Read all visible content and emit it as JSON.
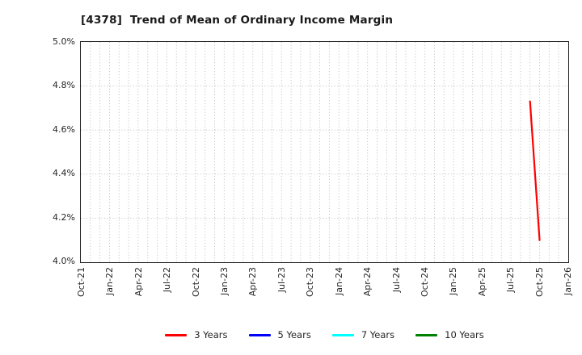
{
  "chart_data": {
    "type": "line",
    "title": "[4378]  Trend of Mean of Ordinary Income Margin",
    "xlabel": "",
    "ylabel": "",
    "ylim": [
      4.0,
      5.0
    ],
    "y_ticks": [
      4.0,
      4.2,
      4.4,
      4.6,
      4.8,
      5.0
    ],
    "y_tick_labels": [
      "4.0%",
      "4.2%",
      "4.4%",
      "4.6%",
      "4.8%",
      "5.0%"
    ],
    "x_start_month": "Oct-21",
    "x_end_month": "Jan-26",
    "months_total": 51,
    "x_tick_step_months": 3,
    "x_tick_labels": [
      "Oct-21",
      "Jan-22",
      "Apr-22",
      "Jul-22",
      "Oct-22",
      "Jan-23",
      "Apr-23",
      "Jul-23",
      "Oct-23",
      "Jan-24",
      "Apr-24",
      "Jul-24",
      "Oct-24",
      "Jan-25",
      "Apr-25",
      "Jul-25",
      "Oct-25",
      "Jan-26"
    ],
    "grid": true,
    "grid_color": "#b5b5b5",
    "legend_position": "bottom",
    "series": [
      {
        "name": "3 Years",
        "color": "#ff0000",
        "points": [
          {
            "month": "Sep-25",
            "month_index": 47,
            "value": 4.73
          },
          {
            "month": "Oct-25",
            "month_index": 48,
            "value": 4.1
          }
        ]
      },
      {
        "name": "5 Years",
        "color": "#0000ff",
        "points": []
      },
      {
        "name": "7 Years",
        "color": "#00ffff",
        "points": []
      },
      {
        "name": "10 Years",
        "color": "#008000",
        "points": []
      }
    ]
  }
}
